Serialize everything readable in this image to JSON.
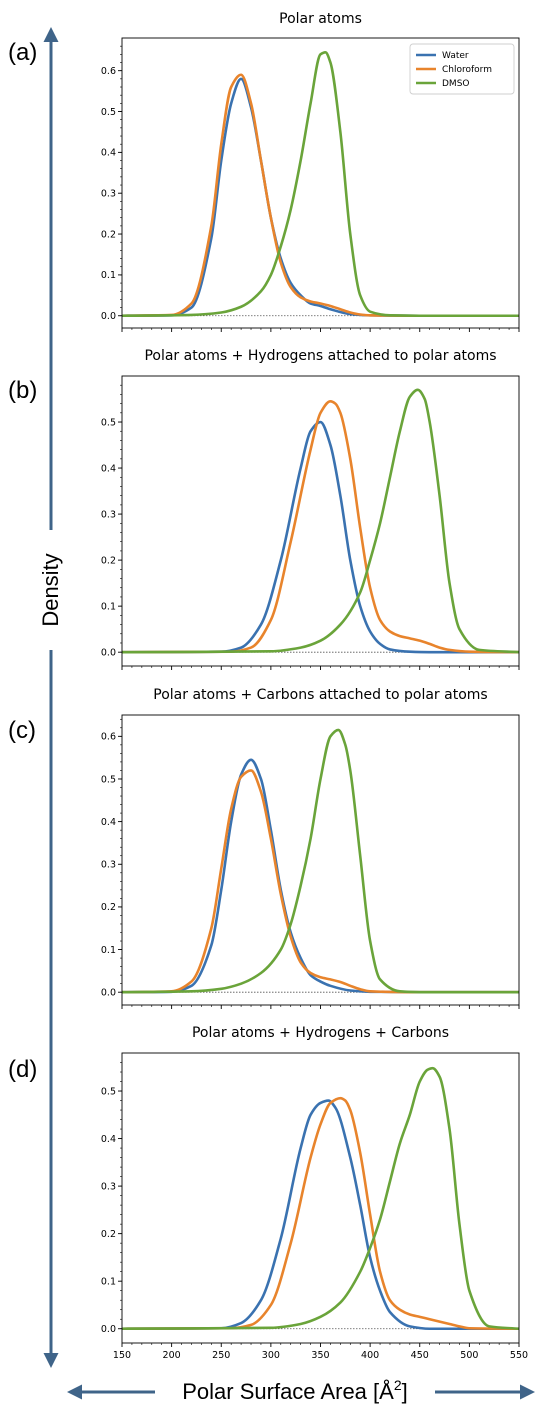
{
  "figure": {
    "ylabel": "Density",
    "xlabel_html": "Polar Surface Area [Å²]",
    "xlabel_main": "Polar Surface Area [Å",
    "xlabel_sup": "2",
    "xlabel_close": "]",
    "arrow_color": "#3f6489"
  },
  "chart_data": [
    {
      "type": "line",
      "panel_label": "(a)",
      "title": "Polar atoms",
      "xlim": [
        150,
        550
      ],
      "ylim": [
        -0.03,
        0.68
      ],
      "yticks": [
        "0.0",
        "0.1",
        "0.2",
        "0.3",
        "0.4",
        "0.5",
        "0.6"
      ],
      "yticks_values": [
        0,
        0.1,
        0.2,
        0.3,
        0.4,
        0.5,
        0.6
      ],
      "legend": {
        "show": true,
        "placement": "top-right"
      },
      "series": [
        {
          "name": "Water",
          "color": "#3a72b0",
          "x": [
            150,
            200,
            220,
            240,
            250,
            260,
            270,
            280,
            290,
            300,
            310,
            320,
            330,
            340,
            350,
            360,
            380,
            400,
            450,
            550
          ],
          "y": [
            0,
            0.001,
            0.02,
            0.19,
            0.38,
            0.52,
            0.58,
            0.51,
            0.38,
            0.24,
            0.14,
            0.08,
            0.05,
            0.03,
            0.024,
            0.016,
            0.004,
            0.001,
            0,
            0
          ]
        },
        {
          "name": "Chloroform",
          "color": "#e8842c",
          "x": [
            150,
            200,
            220,
            240,
            250,
            260,
            270,
            280,
            290,
            300,
            310,
            320,
            330,
            340,
            350,
            360,
            370,
            380,
            390,
            400,
            450,
            550
          ],
          "y": [
            0,
            0.002,
            0.03,
            0.22,
            0.42,
            0.56,
            0.59,
            0.52,
            0.38,
            0.24,
            0.13,
            0.07,
            0.045,
            0.035,
            0.03,
            0.024,
            0.016,
            0.008,
            0.003,
            0.001,
            0,
            0
          ]
        },
        {
          "name": "DMSO",
          "color": "#6aa43a",
          "x": [
            150,
            220,
            250,
            270,
            290,
            300,
            310,
            320,
            330,
            340,
            350,
            355,
            360,
            370,
            380,
            390,
            400,
            420,
            450,
            550
          ],
          "y": [
            0,
            0.002,
            0.008,
            0.022,
            0.06,
            0.1,
            0.17,
            0.26,
            0.38,
            0.52,
            0.64,
            0.645,
            0.62,
            0.45,
            0.2,
            0.05,
            0.01,
            0.001,
            0,
            0
          ]
        }
      ]
    },
    {
      "type": "line",
      "panel_label": "(b)",
      "title": "Polar atoms + Hydrogens attached to polar atoms",
      "xlim": [
        150,
        550
      ],
      "ylim": [
        -0.03,
        0.6
      ],
      "yticks": [
        "0.0",
        "0.1",
        "0.2",
        "0.3",
        "0.4",
        "0.5"
      ],
      "yticks_values": [
        0,
        0.1,
        0.2,
        0.3,
        0.4,
        0.5
      ],
      "legend": {
        "show": false
      },
      "series": [
        {
          "name": "Water",
          "color": "#3a72b0",
          "x": [
            150,
            250,
            270,
            290,
            310,
            330,
            340,
            350,
            360,
            370,
            380,
            390,
            400,
            410,
            420,
            440,
            460,
            550
          ],
          "y": [
            0,
            0.001,
            0.01,
            0.06,
            0.2,
            0.4,
            0.48,
            0.5,
            0.45,
            0.34,
            0.2,
            0.1,
            0.045,
            0.018,
            0.006,
            0.001,
            0,
            0
          ]
        },
        {
          "name": "Chloroform",
          "color": "#e8842c",
          "x": [
            150,
            260,
            280,
            300,
            320,
            340,
            350,
            360,
            365,
            370,
            380,
            390,
            400,
            410,
            420,
            430,
            440,
            450,
            460,
            470,
            480,
            500,
            550
          ],
          "y": [
            0,
            0.001,
            0.01,
            0.07,
            0.24,
            0.44,
            0.52,
            0.545,
            0.54,
            0.52,
            0.42,
            0.27,
            0.14,
            0.07,
            0.045,
            0.035,
            0.03,
            0.025,
            0.018,
            0.01,
            0.005,
            0.001,
            0
          ]
        },
        {
          "name": "DMSO",
          "color": "#6aa43a",
          "x": [
            150,
            300,
            330,
            350,
            370,
            390,
            400,
            410,
            420,
            430,
            440,
            448,
            455,
            460,
            470,
            480,
            490,
            510,
            550
          ],
          "y": [
            0,
            0.002,
            0.01,
            0.025,
            0.06,
            0.13,
            0.2,
            0.28,
            0.38,
            0.48,
            0.555,
            0.57,
            0.55,
            0.5,
            0.34,
            0.15,
            0.05,
            0.005,
            0
          ]
        }
      ]
    },
    {
      "type": "line",
      "panel_label": "(c)",
      "title": "Polar atoms + Carbons attached to polar atoms",
      "xlim": [
        150,
        550
      ],
      "ylim": [
        -0.03,
        0.65
      ],
      "yticks": [
        "0.0",
        "0.1",
        "0.2",
        "0.3",
        "0.4",
        "0.5",
        "0.6"
      ],
      "yticks_values": [
        0,
        0.1,
        0.2,
        0.3,
        0.4,
        0.5,
        0.6
      ],
      "legend": {
        "show": false
      },
      "series": [
        {
          "name": "Water",
          "color": "#3a72b0",
          "x": [
            150,
            200,
            220,
            240,
            250,
            260,
            270,
            280,
            290,
            300,
            310,
            320,
            330,
            340,
            350,
            360,
            380,
            400,
            450,
            550
          ],
          "y": [
            0,
            0.001,
            0.015,
            0.11,
            0.24,
            0.4,
            0.51,
            0.545,
            0.5,
            0.38,
            0.24,
            0.14,
            0.08,
            0.04,
            0.025,
            0.015,
            0.004,
            0.001,
            0,
            0
          ]
        },
        {
          "name": "Chloroform",
          "color": "#e8842c",
          "x": [
            150,
            200,
            220,
            240,
            250,
            260,
            270,
            280,
            290,
            300,
            310,
            320,
            330,
            340,
            350,
            360,
            370,
            380,
            390,
            400,
            450,
            550
          ],
          "y": [
            0,
            0.002,
            0.025,
            0.15,
            0.29,
            0.43,
            0.505,
            0.52,
            0.47,
            0.36,
            0.23,
            0.13,
            0.07,
            0.045,
            0.035,
            0.03,
            0.024,
            0.015,
            0.007,
            0.002,
            0,
            0
          ]
        },
        {
          "name": "DMSO",
          "color": "#6aa43a",
          "x": [
            150,
            220,
            250,
            270,
            290,
            310,
            320,
            330,
            340,
            350,
            360,
            368,
            375,
            380,
            390,
            400,
            410,
            430,
            450,
            550
          ],
          "y": [
            0,
            0.002,
            0.008,
            0.02,
            0.045,
            0.1,
            0.16,
            0.25,
            0.36,
            0.5,
            0.6,
            0.615,
            0.58,
            0.52,
            0.32,
            0.12,
            0.03,
            0.002,
            0,
            0
          ]
        }
      ]
    },
    {
      "type": "line",
      "panel_label": "(d)",
      "title": "Polar atoms + Hydrogens + Carbons",
      "xlim": [
        150,
        550
      ],
      "ylim": [
        -0.03,
        0.58
      ],
      "yticks": [
        "0.0",
        "0.1",
        "0.2",
        "0.3",
        "0.4",
        "0.5"
      ],
      "yticks_values": [
        0,
        0.1,
        0.2,
        0.3,
        0.4,
        0.5
      ],
      "xticks": [
        "150",
        "200",
        "250",
        "300",
        "350",
        "400",
        "450",
        "500",
        "550"
      ],
      "xticks_values": [
        150,
        200,
        250,
        300,
        350,
        400,
        450,
        500,
        550
      ],
      "legend": {
        "show": false
      },
      "series": [
        {
          "name": "Water",
          "color": "#3a72b0",
          "x": [
            150,
            250,
            270,
            290,
            310,
            330,
            340,
            350,
            358,
            365,
            380,
            390,
            400,
            410,
            420,
            440,
            460,
            550
          ],
          "y": [
            0,
            0.001,
            0.012,
            0.06,
            0.19,
            0.38,
            0.45,
            0.475,
            0.48,
            0.465,
            0.36,
            0.26,
            0.15,
            0.08,
            0.035,
            0.005,
            0,
            0
          ]
        },
        {
          "name": "Chloroform",
          "color": "#e8842c",
          "x": [
            150,
            260,
            280,
            300,
            320,
            340,
            350,
            360,
            370,
            375,
            380,
            390,
            400,
            410,
            420,
            430,
            440,
            450,
            460,
            470,
            480,
            490,
            500,
            550
          ],
          "y": [
            0,
            0.001,
            0.008,
            0.05,
            0.18,
            0.36,
            0.43,
            0.475,
            0.485,
            0.48,
            0.46,
            0.37,
            0.24,
            0.12,
            0.06,
            0.04,
            0.03,
            0.025,
            0.02,
            0.015,
            0.01,
            0.005,
            0.001,
            0
          ]
        },
        {
          "name": "DMSO",
          "color": "#6aa43a",
          "x": [
            150,
            300,
            330,
            350,
            370,
            390,
            400,
            410,
            420,
            430,
            440,
            450,
            458,
            463,
            470,
            480,
            490,
            500,
            520,
            550
          ],
          "y": [
            0,
            0.002,
            0.01,
            0.025,
            0.055,
            0.12,
            0.17,
            0.23,
            0.31,
            0.39,
            0.45,
            0.52,
            0.545,
            0.548,
            0.53,
            0.42,
            0.22,
            0.08,
            0.005,
            0
          ]
        }
      ]
    }
  ]
}
